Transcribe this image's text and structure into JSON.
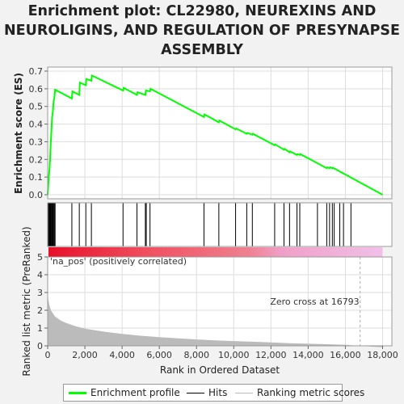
{
  "title_lines": [
    "Enrichment plot: CL22980, NEUREXINS AND",
    "NEUROLIGINS, AND REGULATION OF PRESYNAPSE",
    "ASSEMBLY"
  ],
  "legend": {
    "items": [
      {
        "label": "Enrichment profile",
        "color": "#00ff00"
      },
      {
        "label": "Hits",
        "color": "#000000"
      },
      {
        "label": "Ranking metric scores",
        "color": "#bbbbbb"
      }
    ]
  },
  "chart_data": [
    {
      "type": "line",
      "name": "enrichment-profile",
      "ylabel": "Enrichment score (ES)",
      "xlim": [
        0,
        18500
      ],
      "ylim": [
        0,
        0.7
      ],
      "yticks": [
        "0.0",
        "0.1",
        "0.2",
        "0.3",
        "0.4",
        "0.5",
        "0.6",
        "0.7"
      ],
      "grid": true,
      "color": "#00ff00",
      "x": [
        0,
        30,
        60,
        100,
        130,
        160,
        200,
        240,
        280,
        320,
        360,
        400,
        1300,
        1330,
        1700,
        1730,
        2050,
        2080,
        2350,
        2380,
        4050,
        4080,
        4800,
        4830,
        5250,
        5280,
        5500,
        5530,
        8400,
        8430,
        9200,
        9230,
        10100,
        10130,
        10700,
        10730,
        11000,
        11030,
        12200,
        12230,
        12700,
        12730,
        13000,
        13030,
        13400,
        13430,
        13550,
        13580,
        15000,
        15030,
        15150,
        15180,
        15300,
        15330,
        18000
      ],
      "y": [
        0.0,
        0.05,
        0.1,
        0.15,
        0.2,
        0.28,
        0.36,
        0.44,
        0.47,
        0.53,
        0.55,
        0.595,
        0.545,
        0.585,
        0.565,
        0.635,
        0.62,
        0.655,
        0.645,
        0.675,
        0.59,
        0.605,
        0.565,
        0.58,
        0.565,
        0.59,
        0.585,
        0.6,
        0.44,
        0.455,
        0.41,
        0.42,
        0.37,
        0.375,
        0.345,
        0.35,
        0.34,
        0.345,
        0.28,
        0.285,
        0.255,
        0.26,
        0.24,
        0.245,
        0.225,
        0.23,
        0.225,
        0.23,
        0.15,
        0.155,
        0.15,
        0.155,
        0.15,
        0.153,
        0.0
      ]
    },
    {
      "type": "bar",
      "name": "hits",
      "xlim": [
        0,
        18500
      ],
      "hit_ranks": [
        30,
        60,
        100,
        130,
        160,
        200,
        240,
        280,
        320,
        360,
        400,
        1300,
        1700,
        2050,
        2350,
        4050,
        4800,
        5250,
        5300,
        5500,
        8400,
        9200,
        10100,
        10700,
        11000,
        12200,
        12700,
        13000,
        13400,
        13550,
        14500,
        15000,
        15150,
        15300,
        15400,
        15700,
        15900,
        16300
      ]
    },
    {
      "type": "area",
      "name": "ranking-metric",
      "xlabel": "Rank in Ordered Dataset",
      "ylabel": "Ranked list metric (PreRanked)",
      "xlim": [
        0,
        18500
      ],
      "ylim": [
        0,
        5
      ],
      "xticks": [
        "0",
        "2,000",
        "4,000",
        "6,000",
        "8,000",
        "10,000",
        "12,000",
        "14,000",
        "16,000",
        "18,000"
      ],
      "yticks": [
        "0",
        "1",
        "2",
        "3",
        "4",
        "5"
      ],
      "x": [
        0,
        30,
        100,
        200,
        400,
        700,
        1000,
        1500,
        2000,
        3000,
        4000,
        5000,
        6000,
        7000,
        8000,
        9000,
        10000,
        11000,
        12000,
        13000,
        14000,
        15000,
        16000,
        16793,
        17500,
        18000
      ],
      "y": [
        3.1,
        2.6,
        2.25,
        1.95,
        1.65,
        1.42,
        1.28,
        1.1,
        0.97,
        0.8,
        0.67,
        0.57,
        0.49,
        0.42,
        0.36,
        0.31,
        0.27,
        0.23,
        0.19,
        0.15,
        0.12,
        0.09,
        0.06,
        0.0,
        -0.05,
        -0.08
      ],
      "color": "#bbbbbb",
      "zero_cross_label": "Zero cross at 16793",
      "zero_cross_rank": 16793,
      "positive_label": "'na_pos' (positively correlated)",
      "positive_color": "#e8404a",
      "negative_color": "#e8a0d8"
    }
  ]
}
